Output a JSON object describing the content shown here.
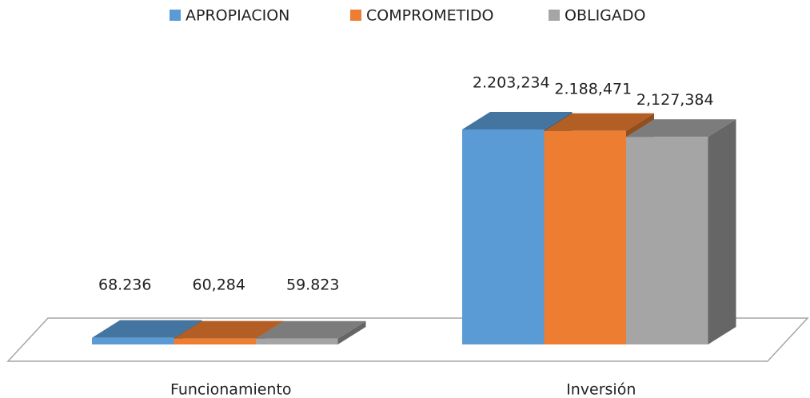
{
  "chart_data": {
    "type": "bar3d",
    "categories": [
      "Funcionamiento",
      "Inversión"
    ],
    "series": [
      {
        "name": "APROPIACION",
        "color": "#5b9bd5",
        "values": [
          68236,
          2203234
        ],
        "value_labels": [
          "68.236",
          "2.203,234"
        ]
      },
      {
        "name": "COMPROMETIDO",
        "color": "#ed7d31",
        "values": [
          60284,
          2188471
        ],
        "value_labels": [
          "60,284",
          "2.188,471"
        ]
      },
      {
        "name": "OBLIGADO",
        "color": "#a5a5a5",
        "values": [
          59823,
          2127384
        ],
        "value_labels": [
          "59.823",
          "2,127,384"
        ]
      }
    ],
    "legend": "top"
  }
}
